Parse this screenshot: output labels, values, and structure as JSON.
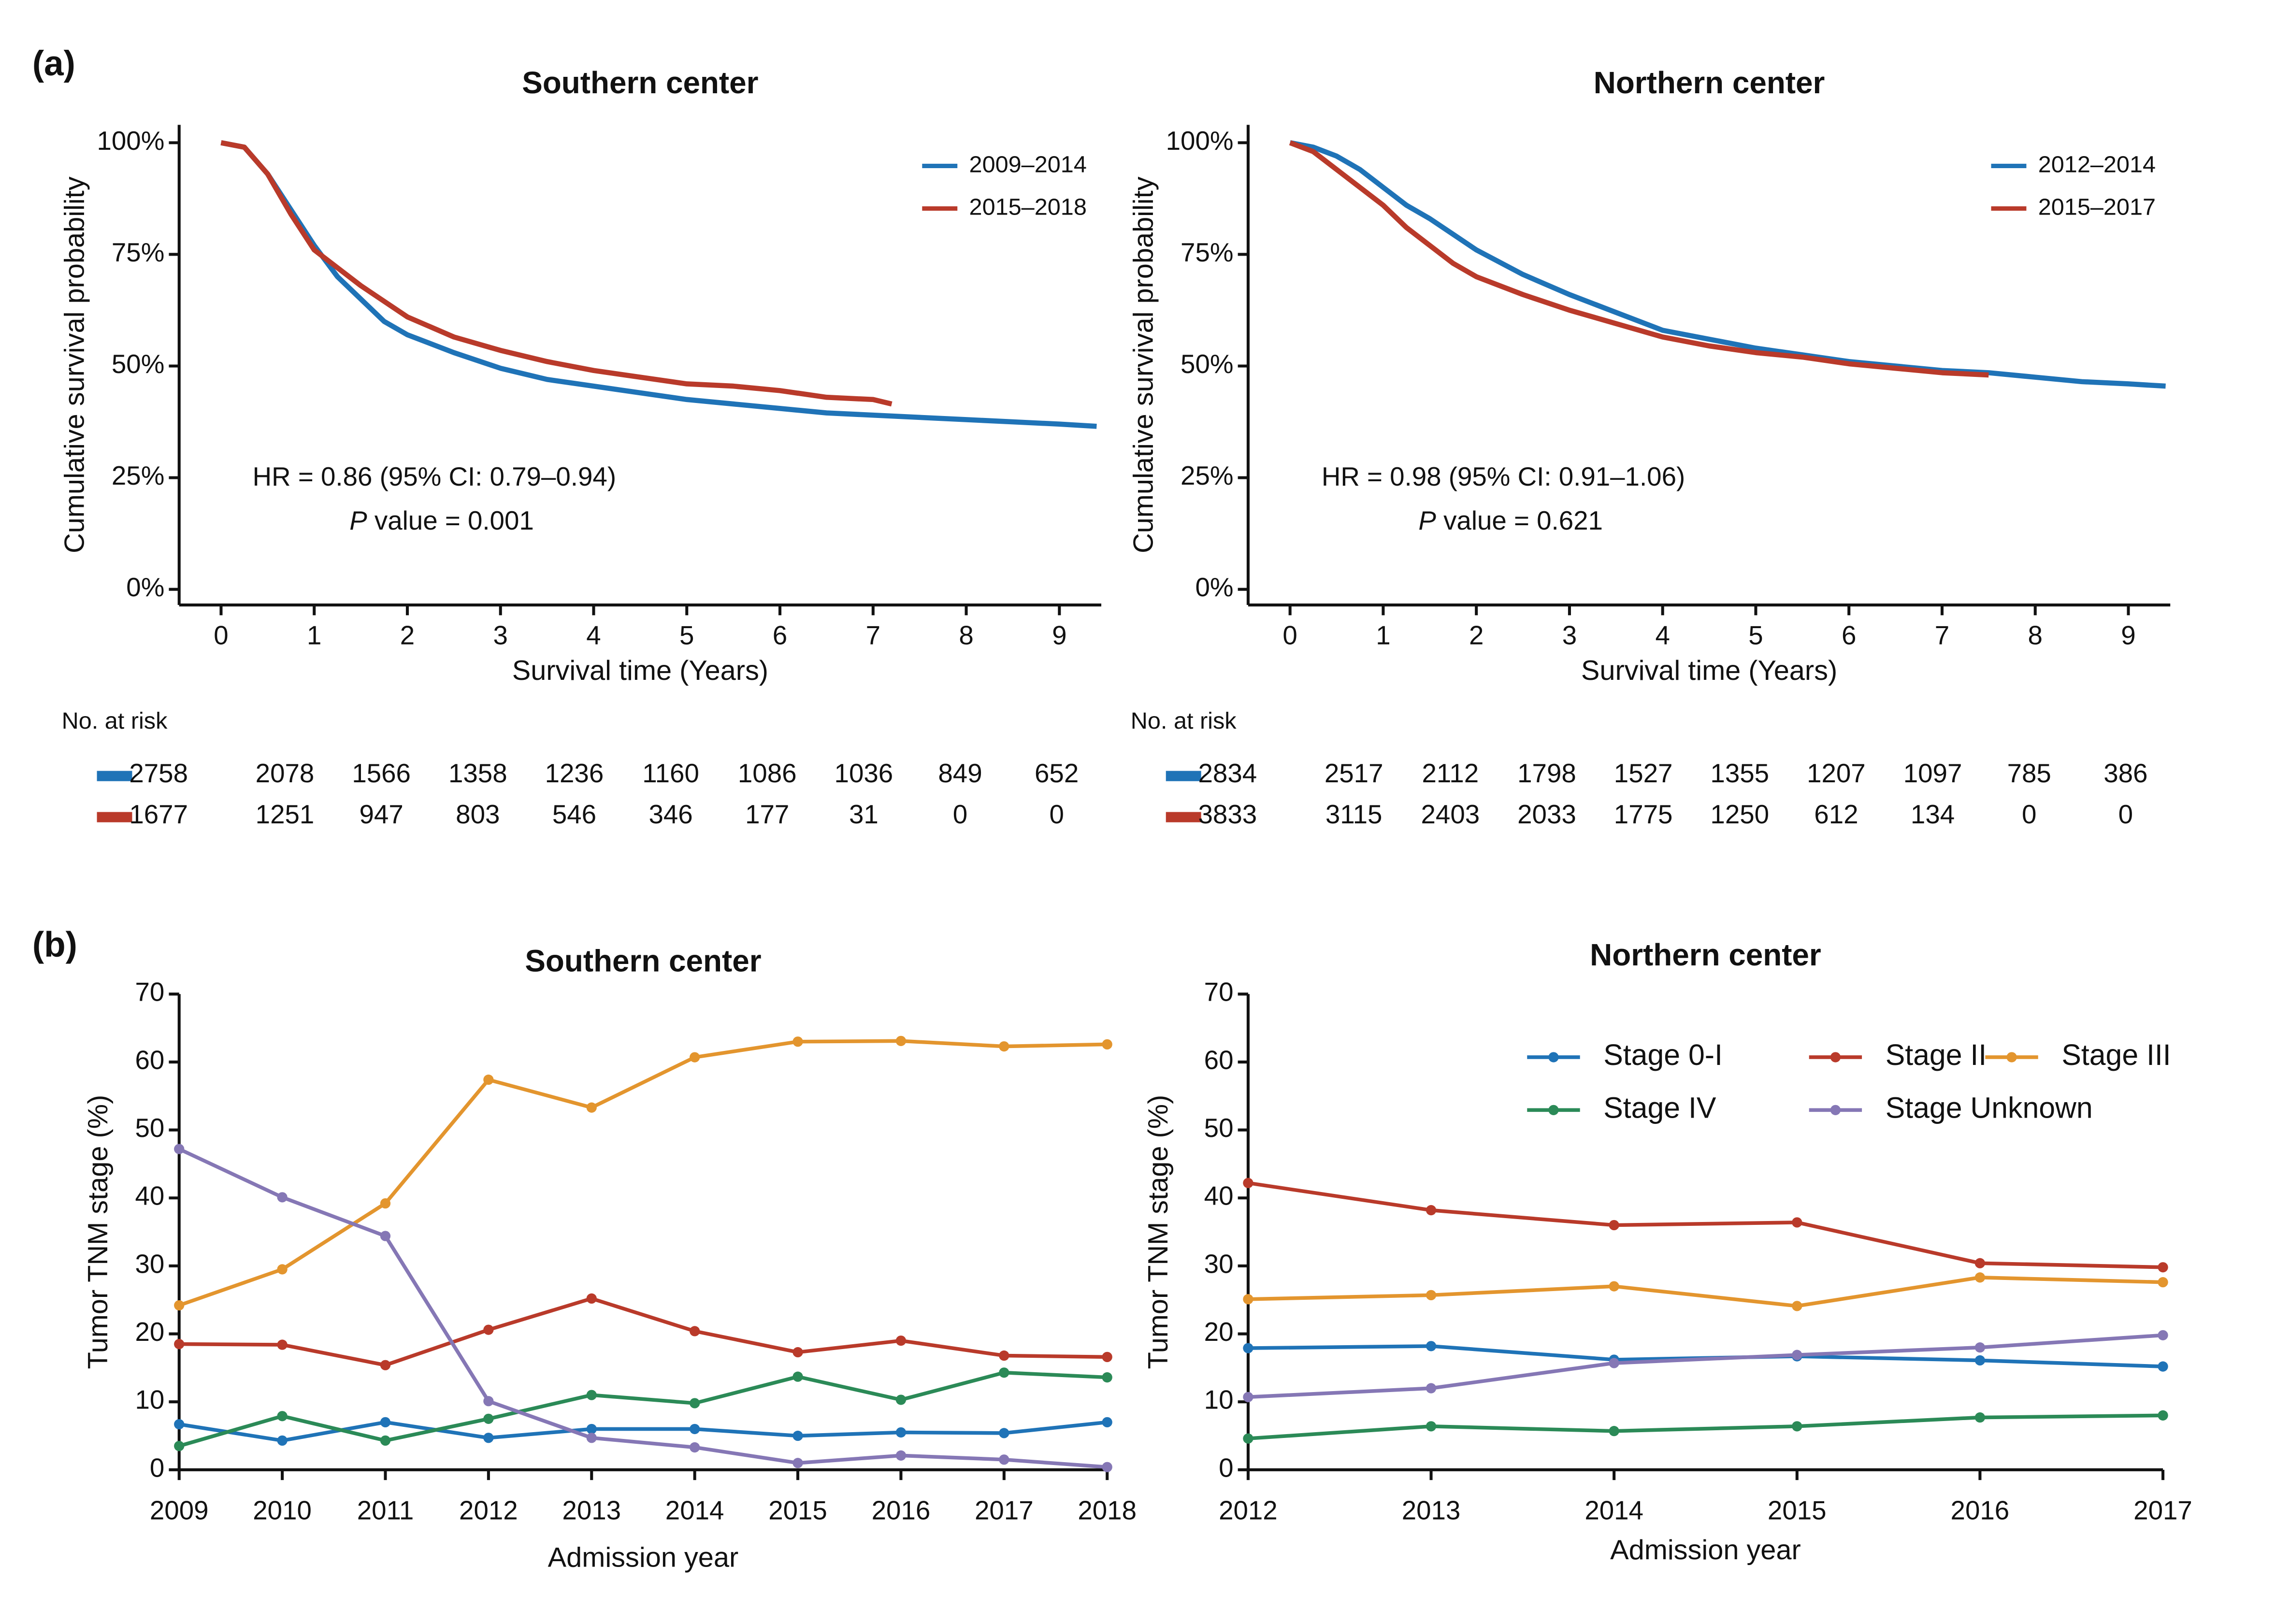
{
  "panels": [
    "(a)",
    "(b)"
  ],
  "chart_data": [
    {
      "type": "line",
      "title": "Southern center",
      "x_label": "Survival time (Years)",
      "y_label": "Cumulative survival probability",
      "xlim": [
        -0.45,
        9.45
      ],
      "xticks": [
        0,
        1,
        2,
        3,
        4,
        5,
        6,
        7,
        8,
        9
      ],
      "ylim": [
        -3.5,
        104
      ],
      "yticks": [
        {
          "value": 0,
          "label": "0%"
        },
        {
          "value": 25,
          "label": "25%"
        },
        {
          "value": 50,
          "label": "50%"
        },
        {
          "value": 75,
          "label": "75%"
        },
        {
          "value": 100,
          "label": "100%"
        }
      ],
      "markers": false,
      "annotations": [
        "HR = 0.86 (95% CI: 0.79–0.94)",
        "P",
        "value = 0.001"
      ],
      "series": [
        {
          "name": "2009–2014",
          "color": "#1f73b7",
          "x": [
            0,
            0.25,
            0.5,
            0.75,
            1,
            1.25,
            1.5,
            1.75,
            2,
            2.5,
            3,
            3.5,
            4,
            4.5,
            5,
            5.5,
            6,
            6.5,
            7,
            7.5,
            8,
            8.5,
            9,
            9.4
          ],
          "values": [
            100,
            99,
            93,
            85,
            77,
            70,
            65,
            60,
            57,
            53,
            49.5,
            47,
            45.5,
            44,
            42.5,
            41.5,
            40.5,
            39.5,
            39,
            38.5,
            38,
            37.5,
            37,
            36.5
          ]
        },
        {
          "name": "2015–2018",
          "color": "#b93a2a",
          "x": [
            0,
            0.25,
            0.5,
            0.75,
            1,
            1.25,
            1.5,
            1.75,
            2,
            2.5,
            3,
            3.5,
            4,
            4.5,
            5,
            5.5,
            6,
            6.5,
            7,
            7.2
          ],
          "values": [
            100,
            99,
            93,
            84,
            76,
            72,
            68,
            64.5,
            61,
            56.5,
            53.5,
            51,
            49,
            47.5,
            46,
            45.5,
            44.5,
            43,
            42.5,
            41.5
          ]
        }
      ],
      "risk_table": {
        "title": "No. at risk",
        "rows": [
          [
            2758,
            2078,
            1566,
            1358,
            1236,
            1160,
            1086,
            1036,
            849,
            652
          ],
          [
            1677,
            1251,
            947,
            803,
            546,
            346,
            177,
            31,
            0,
            0
          ]
        ]
      }
    },
    {
      "type": "line",
      "title": "Northern center",
      "x_label": "Survival time (Years)",
      "y_label": "Cumulative survival probability",
      "xlim": [
        -0.45,
        9.45
      ],
      "xticks": [
        0,
        1,
        2,
        3,
        4,
        5,
        6,
        7,
        8,
        9
      ],
      "ylim": [
        -3.5,
        104
      ],
      "yticks": [
        {
          "value": 0,
          "label": "0%"
        },
        {
          "value": 25,
          "label": "25%"
        },
        {
          "value": 50,
          "label": "50%"
        },
        {
          "value": 75,
          "label": "75%"
        },
        {
          "value": 100,
          "label": "100%"
        }
      ],
      "markers": false,
      "annotations": [
        "HR = 0.98 (95% CI: 0.91–1.06)",
        "P",
        "value = 0.621"
      ],
      "series": [
        {
          "name": "2012–2014",
          "color": "#1f73b7",
          "x": [
            0,
            0.25,
            0.5,
            0.75,
            1,
            1.25,
            1.5,
            1.75,
            2,
            2.5,
            3,
            3.5,
            4,
            4.5,
            5,
            5.5,
            6,
            6.5,
            7,
            7.5,
            8,
            8.5,
            9,
            9.4
          ],
          "values": [
            100,
            99,
            97,
            94,
            90,
            86,
            83,
            79.5,
            76,
            70.5,
            66,
            62,
            58,
            56,
            54,
            52.5,
            51,
            50,
            49,
            48.5,
            47.5,
            46.5,
            46,
            45.5
          ]
        },
        {
          "name": "2015–2017",
          "color": "#b93a2a",
          "x": [
            0,
            0.25,
            0.5,
            0.75,
            1,
            1.25,
            1.5,
            1.75,
            2,
            2.5,
            3,
            3.5,
            4,
            4.5,
            5,
            5.5,
            6,
            6.5,
            7,
            7.5
          ],
          "values": [
            100,
            98,
            94,
            90,
            86,
            81,
            77,
            73,
            70,
            66,
            62.5,
            59.5,
            56.5,
            54.5,
            53,
            52,
            50.5,
            49.5,
            48.5,
            48
          ]
        }
      ],
      "risk_table": {
        "title": "No. at risk",
        "rows": [
          [
            2834,
            2517,
            2112,
            1798,
            1527,
            1355,
            1207,
            1097,
            785,
            386
          ],
          [
            3833,
            3115,
            2403,
            2033,
            1775,
            1250,
            612,
            134,
            0,
            0
          ]
        ]
      }
    },
    {
      "type": "line",
      "title": "Southern center",
      "x_label": "Admission year",
      "y_label": "Tumor TNM stage (%)",
      "categories": [
        "2009",
        "2010",
        "2011",
        "2012",
        "2013",
        "2014",
        "2015",
        "2016",
        "2017",
        "2018"
      ],
      "ylim": [
        0,
        70
      ],
      "yticks": [
        0,
        10,
        20,
        30,
        40,
        50,
        60,
        70
      ],
      "markers": true,
      "series": [
        {
          "name": "Stage 0-I",
          "color": "#1f73b7",
          "values": [
            6.7,
            4.3,
            7,
            4.7,
            6,
            6,
            5,
            5.5,
            5.4,
            7
          ]
        },
        {
          "name": "Stage II",
          "color": "#b93a2a",
          "values": [
            18.5,
            18.4,
            15.4,
            20.6,
            25.2,
            20.4,
            17.3,
            19,
            16.8,
            16.6
          ]
        },
        {
          "name": "Stage III",
          "color": "#e3952e",
          "values": [
            24.2,
            29.5,
            39.2,
            57.4,
            53.3,
            60.7,
            63,
            63.1,
            62.3,
            62.6
          ]
        },
        {
          "name": "Stage IV",
          "color": "#2b8a57",
          "values": [
            3.5,
            7.9,
            4.3,
            7.5,
            11,
            9.8,
            13.7,
            10.3,
            14.3,
            13.6
          ]
        },
        {
          "name": "Stage Unknown",
          "color": "#8577b5",
          "values": [
            47.2,
            40.1,
            34.4,
            10.1,
            4.7,
            3.3,
            1,
            2.1,
            1.5,
            0.4
          ]
        }
      ]
    },
    {
      "type": "line",
      "title": "Northern center",
      "x_label": "Admission year",
      "y_label": "Tumor TNM stage (%)",
      "categories": [
        "2012",
        "2013",
        "2014",
        "2015",
        "2016",
        "2017"
      ],
      "ylim": [
        0,
        70
      ],
      "yticks": [
        0,
        10,
        20,
        30,
        40,
        50,
        60,
        70
      ],
      "markers": true,
      "legend": "top-right",
      "series": [
        {
          "name": "Stage 0-I",
          "color": "#1f73b7",
          "values": [
            17.9,
            18.2,
            16.2,
            16.7,
            16.1,
            15.2
          ]
        },
        {
          "name": "Stage II",
          "color": "#b93a2a",
          "values": [
            42.2,
            38.2,
            36,
            36.4,
            30.4,
            29.8
          ]
        },
        {
          "name": "Stage III",
          "color": "#e3952e",
          "values": [
            25.1,
            25.7,
            27,
            24.1,
            28.3,
            27.6
          ]
        },
        {
          "name": "Stage IV",
          "color": "#2b8a57",
          "values": [
            4.6,
            6.4,
            5.7,
            6.4,
            7.7,
            8
          ]
        },
        {
          "name": "Stage Unknown",
          "color": "#8577b5",
          "values": [
            10.7,
            12,
            15.7,
            16.9,
            18,
            19.8
          ]
        }
      ]
    }
  ]
}
